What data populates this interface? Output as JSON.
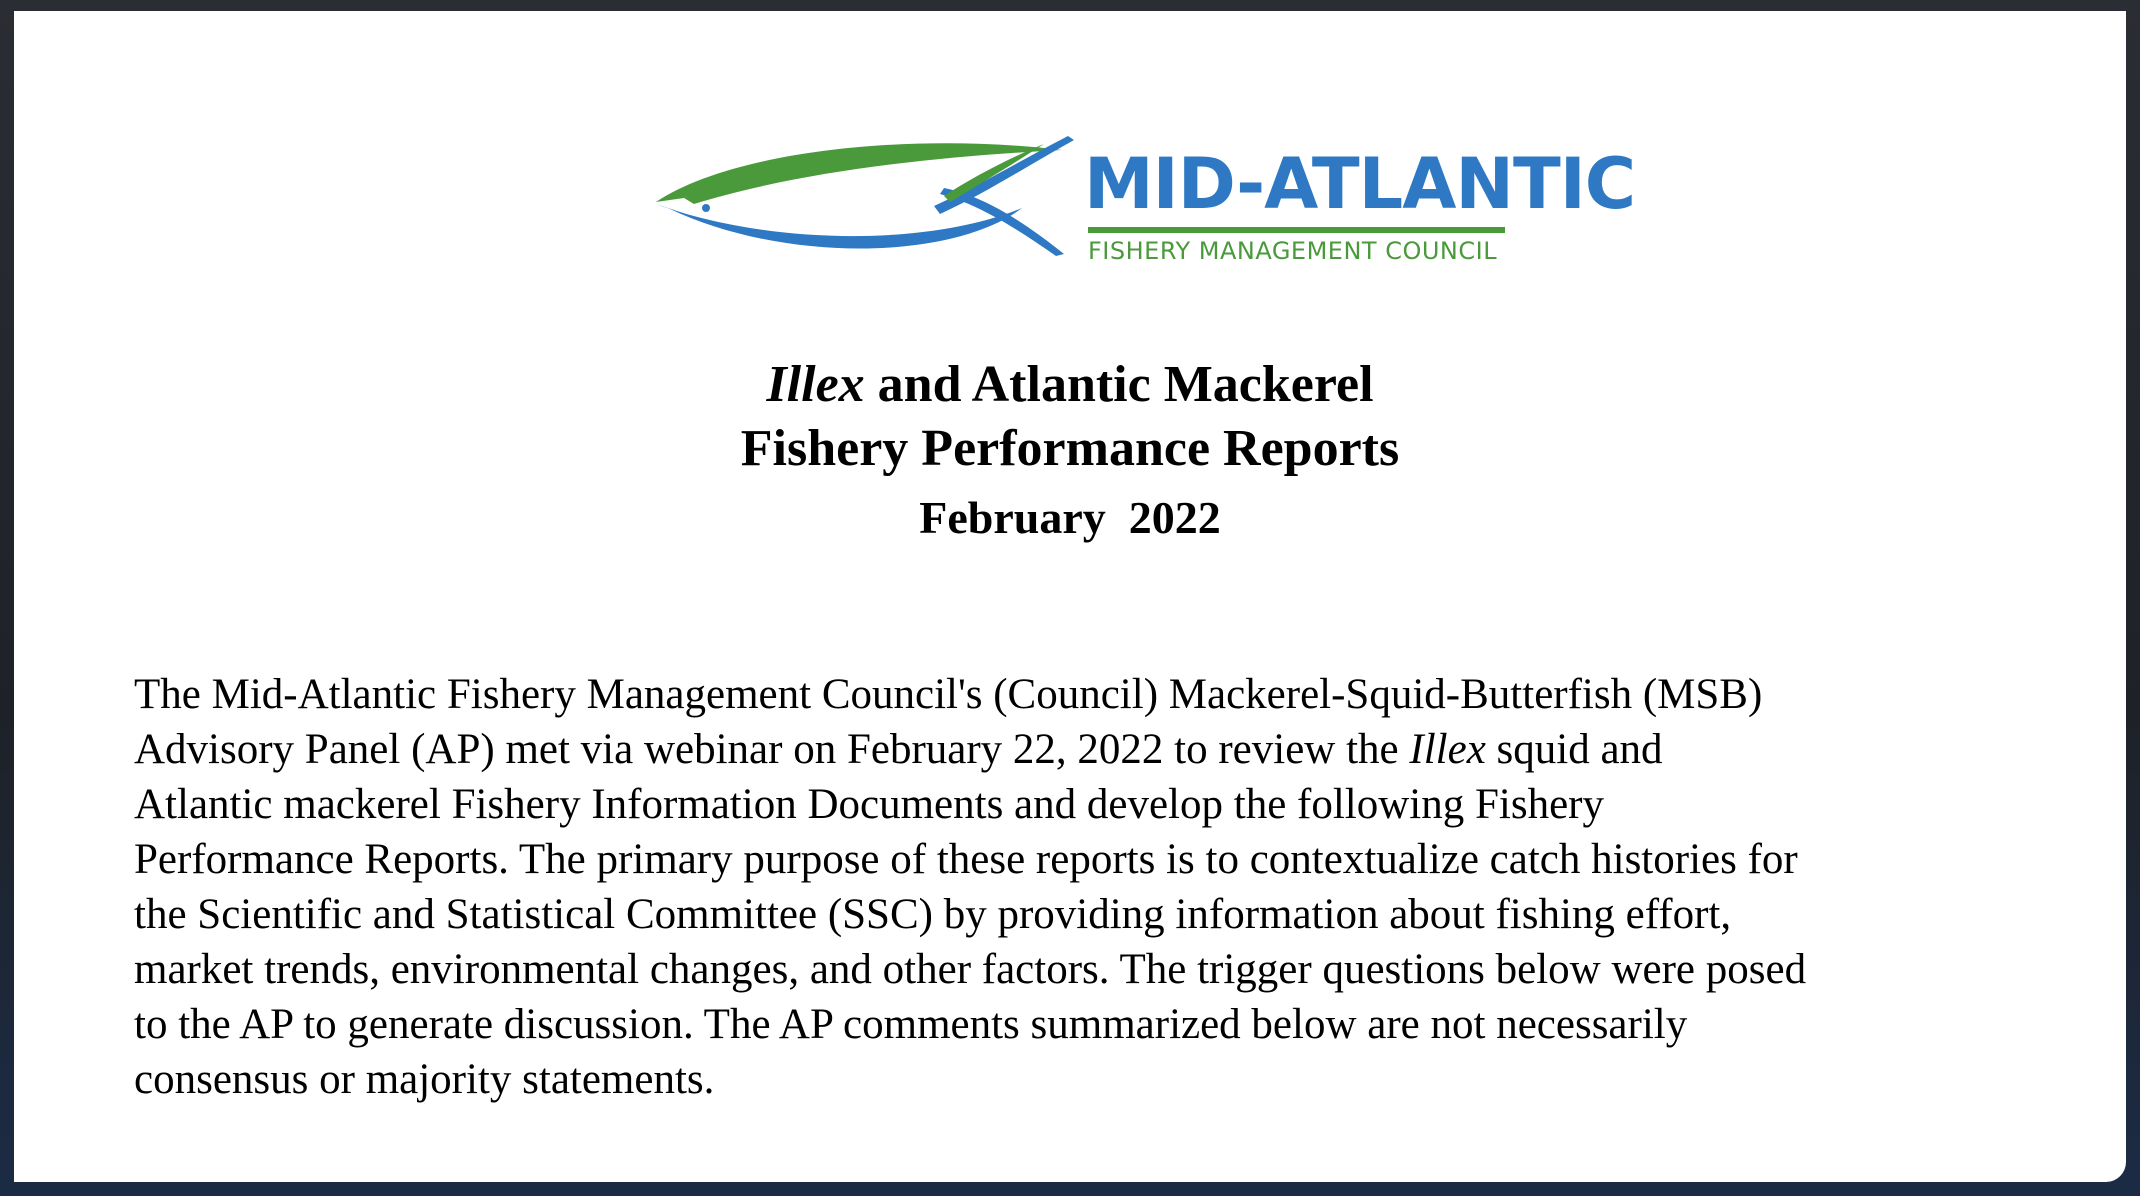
{
  "logo": {
    "title": "MID-ATLANTIC",
    "subtitle": "FISHERY MANAGEMENT COUNCIL",
    "colors": {
      "blue": "#2f79c4",
      "green": "#4a9a3c"
    },
    "icon": "fish-emblem-icon"
  },
  "heading": {
    "line1_italic": "Illex",
    "line1_rest": " and Atlantic Mackerel",
    "line2": "Fishery Performance Reports",
    "date": "February  2022"
  },
  "body": {
    "line1": "The Mid-Atlantic Fishery Management Council's (Council) Mackerel-Squid-Butterfish (MSB)",
    "line2_before": "Advisory Panel (AP) met via webinar on February 22, 2022 to review the ",
    "line2_italic": "Illex",
    "line2_after": " squid and",
    "line3": "Atlantic mackerel Fishery Information Documents and develop the following Fishery",
    "line4": "Performance Reports. The primary purpose of these reports is to contextualize catch histories for",
    "line5": "the Scientific and Statistical Committee (SSC) by providing information about fishing effort,",
    "line6": "market trends, environmental changes, and other factors. The trigger questions below were posed",
    "line7": "to the AP to generate discussion. The AP comments summarized below are not necessarily",
    "line8": "consensus or majority statements."
  }
}
